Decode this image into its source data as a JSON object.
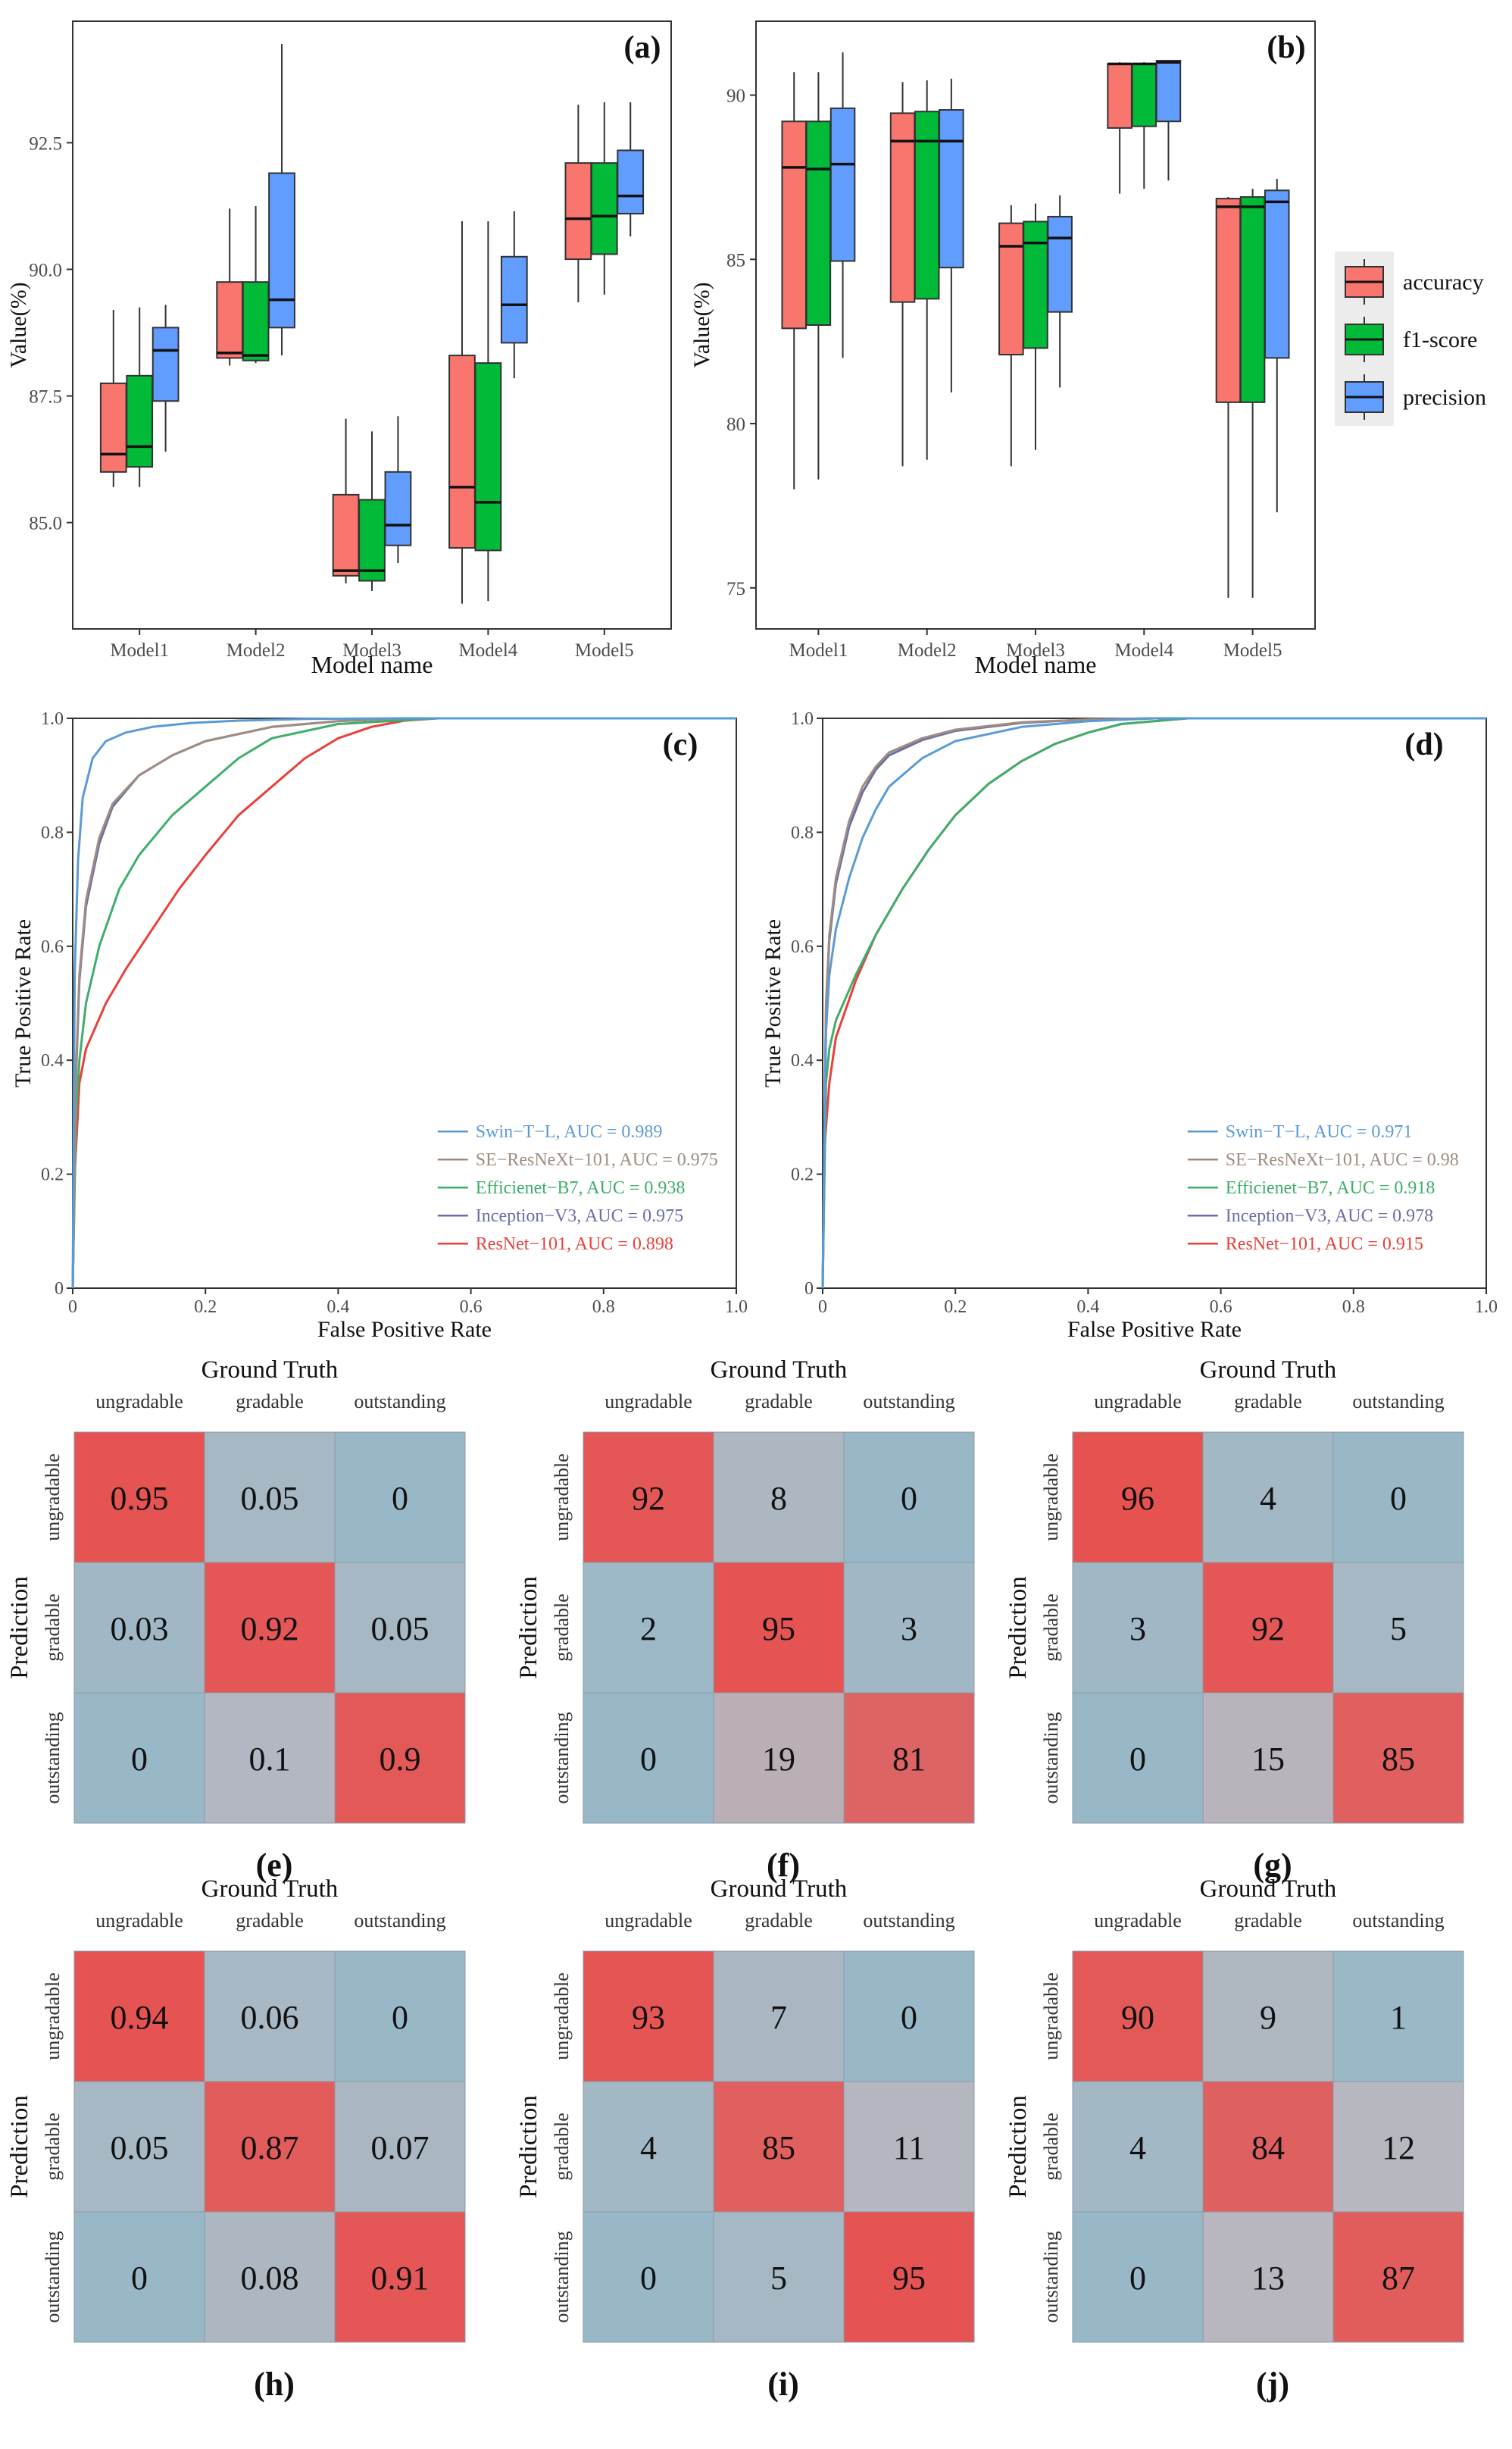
{
  "chart_data": [
    {
      "id": "a",
      "panel_label": "(a)",
      "type": "box",
      "xlabel": "Model name",
      "ylabel": "Value(%)",
      "categories": [
        "Model1",
        "Model2",
        "Model3",
        "Model4",
        "Model5"
      ],
      "ylim": [
        82.9,
        94.9
      ],
      "yticks": [
        85.0,
        87.5,
        90.0,
        92.5
      ],
      "ytick_labels": [
        "85.0",
        "87.5",
        "90.0",
        "92.5"
      ],
      "series": [
        {
          "name": "accuracy",
          "color": "#F8766D",
          "boxes": [
            {
              "min": 85.7,
              "q1": 86.0,
              "median": 86.35,
              "q3": 87.75,
              "max": 89.2
            },
            {
              "min": 88.1,
              "q1": 88.25,
              "median": 88.35,
              "q3": 89.75,
              "max": 91.2
            },
            {
              "min": 83.8,
              "q1": 83.95,
              "median": 84.05,
              "q3": 85.55,
              "max": 87.05
            },
            {
              "min": 83.4,
              "q1": 84.5,
              "median": 85.7,
              "q3": 88.3,
              "max": 90.95
            },
            {
              "min": 89.35,
              "q1": 90.2,
              "median": 91.0,
              "q3": 92.1,
              "max": 93.25
            }
          ]
        },
        {
          "name": "f1-score",
          "color": "#00BA38",
          "boxes": [
            {
              "min": 85.7,
              "q1": 86.1,
              "median": 86.5,
              "q3": 87.9,
              "max": 89.25
            },
            {
              "min": 88.15,
              "q1": 88.2,
              "median": 88.3,
              "q3": 89.75,
              "max": 91.25
            },
            {
              "min": 83.65,
              "q1": 83.85,
              "median": 84.05,
              "q3": 85.45,
              "max": 86.8
            },
            {
              "min": 83.45,
              "q1": 84.45,
              "median": 85.4,
              "q3": 88.15,
              "max": 90.95
            },
            {
              "min": 89.5,
              "q1": 90.3,
              "median": 91.05,
              "q3": 92.1,
              "max": 93.3
            }
          ]
        },
        {
          "name": "precision",
          "color": "#619CFF",
          "boxes": [
            {
              "min": 86.4,
              "q1": 87.4,
              "median": 88.4,
              "q3": 88.85,
              "max": 89.3
            },
            {
              "min": 88.3,
              "q1": 88.85,
              "median": 89.4,
              "q3": 91.9,
              "max": 94.45
            },
            {
              "min": 84.2,
              "q1": 84.55,
              "median": 84.95,
              "q3": 86.0,
              "max": 87.1
            },
            {
              "min": 87.85,
              "q1": 88.55,
              "median": 89.3,
              "q3": 90.25,
              "max": 91.15
            },
            {
              "min": 90.65,
              "q1": 91.1,
              "median": 91.45,
              "q3": 92.35,
              "max": 93.3
            }
          ]
        }
      ]
    },
    {
      "id": "b",
      "panel_label": "(b)",
      "type": "box",
      "xlabel": "Model name",
      "ylabel": "Value(%)",
      "categories": [
        "Model1",
        "Model2",
        "Model3",
        "Model4",
        "Model5"
      ],
      "ylim": [
        73.75,
        92.25
      ],
      "yticks": [
        75,
        80,
        85,
        90
      ],
      "ytick_labels": [
        "75",
        "80",
        "85",
        "90"
      ],
      "legend": {
        "position": "right",
        "entries": [
          "accuracy",
          "f1-score",
          "precision"
        ]
      },
      "series": [
        {
          "name": "accuracy",
          "color": "#F8766D",
          "boxes": [
            {
              "min": 78.0,
              "q1": 82.9,
              "median": 87.8,
              "q3": 89.2,
              "max": 90.7
            },
            {
              "min": 78.7,
              "q1": 83.7,
              "median": 88.6,
              "q3": 89.45,
              "max": 90.4
            },
            {
              "min": 78.7,
              "q1": 82.1,
              "median": 85.4,
              "q3": 86.1,
              "max": 86.65
            },
            {
              "min": 87.0,
              "q1": 89.0,
              "median": 90.95,
              "q3": 90.95,
              "max": 91.0
            },
            {
              "min": 74.7,
              "q1": 80.65,
              "median": 86.6,
              "q3": 86.85,
              "max": 86.9
            }
          ]
        },
        {
          "name": "f1-score",
          "color": "#00BA38",
          "boxes": [
            {
              "min": 78.3,
              "q1": 83.0,
              "median": 87.75,
              "q3": 89.2,
              "max": 90.7
            },
            {
              "min": 78.9,
              "q1": 83.8,
              "median": 88.6,
              "q3": 89.5,
              "max": 90.45
            },
            {
              "min": 79.2,
              "q1": 82.3,
              "median": 85.5,
              "q3": 86.15,
              "max": 86.7
            },
            {
              "min": 87.15,
              "q1": 89.05,
              "median": 90.95,
              "q3": 90.95,
              "max": 91.0
            },
            {
              "min": 74.7,
              "q1": 80.65,
              "median": 86.6,
              "q3": 86.9,
              "max": 87.15
            }
          ]
        },
        {
          "name": "precision",
          "color": "#619CFF",
          "boxes": [
            {
              "min": 82.0,
              "q1": 84.95,
              "median": 87.9,
              "q3": 89.6,
              "max": 91.3
            },
            {
              "min": 80.95,
              "q1": 84.75,
              "median": 88.6,
              "q3": 89.55,
              "max": 90.5
            },
            {
              "min": 81.1,
              "q1": 83.4,
              "median": 85.65,
              "q3": 86.3,
              "max": 86.95
            },
            {
              "min": 87.4,
              "q1": 89.2,
              "median": 91.0,
              "q3": 91.05,
              "max": 91.05
            },
            {
              "min": 77.3,
              "q1": 82.0,
              "median": 86.75,
              "q3": 87.1,
              "max": 87.45
            }
          ]
        }
      ]
    },
    {
      "id": "c",
      "panel_label": "(c)",
      "type": "line",
      "xlabel": "False Positive Rate",
      "ylabel": "True Positive Rate",
      "xlim": [
        0,
        1
      ],
      "ylim": [
        0,
        1
      ],
      "ticks": [
        "0",
        "0.2",
        "0.4",
        "0.6",
        "0.8",
        "1.0"
      ],
      "legend_position": "bottom-right",
      "series": [
        {
          "name": "Swin−T−L",
          "label": "Swin−T−L, AUC = 0.989",
          "auc": 0.989,
          "color": "#5B9BD5",
          "x": [
            0,
            0.003,
            0.008,
            0.015,
            0.03,
            0.05,
            0.08,
            0.12,
            0.18,
            0.25,
            0.35,
            0.5,
            1.0
          ],
          "y": [
            0,
            0.55,
            0.75,
            0.86,
            0.93,
            0.96,
            0.975,
            0.985,
            0.992,
            0.996,
            0.999,
            1.0,
            1.0
          ]
        },
        {
          "name": "SE−ResNeXt−101",
          "label": "SE−ResNeXt−101, AUC = 0.975",
          "auc": 0.975,
          "color": "#A08C80",
          "x": [
            0,
            0.005,
            0.01,
            0.02,
            0.04,
            0.06,
            0.1,
            0.15,
            0.2,
            0.3,
            0.4,
            0.5,
            1.0
          ],
          "y": [
            0,
            0.38,
            0.55,
            0.68,
            0.79,
            0.85,
            0.9,
            0.935,
            0.96,
            0.985,
            0.995,
            1.0,
            1.0
          ]
        },
        {
          "name": "Efficienet−B7",
          "label": "Efficienet−B7, AUC = 0.938",
          "auc": 0.938,
          "color": "#3FAE6C",
          "x": [
            0,
            0.005,
            0.01,
            0.02,
            0.04,
            0.07,
            0.1,
            0.15,
            0.2,
            0.25,
            0.3,
            0.4,
            0.55,
            1.0
          ],
          "y": [
            0,
            0.3,
            0.4,
            0.5,
            0.6,
            0.7,
            0.76,
            0.83,
            0.88,
            0.93,
            0.965,
            0.99,
            1.0,
            1.0
          ]
        },
        {
          "name": "Inception−V3",
          "label": "Inception−V3, AUC = 0.975",
          "auc": 0.975,
          "color": "#6A6DA8",
          "x": [
            0,
            0.005,
            0.01,
            0.02,
            0.04,
            0.06,
            0.1,
            0.15,
            0.2,
            0.3,
            0.4,
            0.5,
            1.0
          ],
          "y": [
            0,
            0.37,
            0.54,
            0.67,
            0.78,
            0.845,
            0.9,
            0.935,
            0.96,
            0.985,
            0.995,
            1.0,
            1.0
          ]
        },
        {
          "name": "ResNet−101",
          "label": "ResNet−101, AUC = 0.898",
          "auc": 0.898,
          "color": "#E8403A",
          "x": [
            0,
            0.003,
            0.01,
            0.02,
            0.05,
            0.08,
            0.12,
            0.16,
            0.2,
            0.25,
            0.3,
            0.35,
            0.4,
            0.45,
            0.5,
            0.55,
            1.0
          ],
          "y": [
            0,
            0.2,
            0.36,
            0.42,
            0.5,
            0.56,
            0.63,
            0.7,
            0.76,
            0.83,
            0.88,
            0.93,
            0.965,
            0.985,
            0.996,
            1.0,
            1.0
          ]
        }
      ]
    },
    {
      "id": "d",
      "panel_label": "(d)",
      "type": "line",
      "xlabel": "False Positive Rate",
      "ylabel": "True Positive Rate",
      "xlim": [
        0,
        1
      ],
      "ylim": [
        0,
        1
      ],
      "ticks": [
        "0",
        "0.2",
        "0.4",
        "0.6",
        "0.8",
        "1.0"
      ],
      "legend_position": "bottom-right",
      "series": [
        {
          "name": "Swin−T−L",
          "label": "Swin−T−L, AUC = 0.971",
          "auc": 0.971,
          "color": "#5B9BD5",
          "x": [
            0,
            0.005,
            0.01,
            0.02,
            0.04,
            0.06,
            0.08,
            0.1,
            0.15,
            0.2,
            0.3,
            0.4,
            0.5,
            1.0
          ],
          "y": [
            0,
            0.45,
            0.55,
            0.63,
            0.72,
            0.79,
            0.84,
            0.88,
            0.93,
            0.96,
            0.985,
            0.995,
            1.0,
            1.0
          ]
        },
        {
          "name": "SE−ResNeXt−101",
          "label": "SE−ResNeXt−101, AUC = 0.98",
          "auc": 0.98,
          "color": "#A08C80",
          "x": [
            0,
            0.005,
            0.01,
            0.02,
            0.04,
            0.06,
            0.08,
            0.1,
            0.15,
            0.2,
            0.3,
            0.4,
            0.5,
            1.0
          ],
          "y": [
            0,
            0.5,
            0.62,
            0.72,
            0.82,
            0.88,
            0.915,
            0.94,
            0.965,
            0.98,
            0.993,
            0.998,
            1.0,
            1.0
          ]
        },
        {
          "name": "Efficienet−B7",
          "label": "Efficienet−B7, AUC = 0.918",
          "auc": 0.918,
          "color": "#3FAE6C",
          "x": [
            0,
            0.005,
            0.01,
            0.02,
            0.05,
            0.08,
            0.12,
            0.16,
            0.2,
            0.25,
            0.3,
            0.35,
            0.4,
            0.45,
            0.55,
            1.0
          ],
          "y": [
            0,
            0.36,
            0.42,
            0.47,
            0.55,
            0.62,
            0.7,
            0.77,
            0.83,
            0.885,
            0.925,
            0.955,
            0.975,
            0.99,
            1.0,
            1.0
          ]
        },
        {
          "name": "Inception−V3",
          "label": "Inception−V3, AUC = 0.978",
          "auc": 0.978,
          "color": "#6A6DA8",
          "x": [
            0,
            0.005,
            0.01,
            0.02,
            0.04,
            0.06,
            0.08,
            0.1,
            0.15,
            0.2,
            0.3,
            0.4,
            0.5,
            1.0
          ],
          "y": [
            0,
            0.49,
            0.61,
            0.71,
            0.81,
            0.87,
            0.91,
            0.935,
            0.962,
            0.978,
            0.992,
            0.998,
            1.0,
            1.0
          ]
        },
        {
          "name": "ResNet−101",
          "label": "ResNet−101, AUC = 0.915",
          "auc": 0.915,
          "color": "#E8403A",
          "x": [
            0,
            0.003,
            0.01,
            0.02,
            0.05,
            0.08,
            0.12,
            0.16,
            0.2,
            0.25,
            0.3,
            0.35,
            0.4,
            0.45,
            0.55,
            1.0
          ],
          "y": [
            0,
            0.25,
            0.36,
            0.44,
            0.54,
            0.62,
            0.7,
            0.77,
            0.83,
            0.885,
            0.925,
            0.955,
            0.975,
            0.99,
            1.0,
            1.0
          ]
        }
      ]
    },
    {
      "id": "e",
      "panel_label": "(e)",
      "type": "heatmap",
      "title": "Ground Truth",
      "ylabel": "Prediction",
      "columns": [
        "ungradable",
        "gradable",
        "outstanding"
      ],
      "rows": [
        "ungradable",
        "gradable",
        "outstanding"
      ],
      "values": [
        [
          "0.95",
          "0.05",
          "0"
        ],
        [
          "0.03",
          "0.92",
          "0.05"
        ],
        [
          "0",
          "0.1",
          "0.9"
        ]
      ]
    },
    {
      "id": "f",
      "panel_label": "(f)",
      "type": "heatmap",
      "title": "Ground Truth",
      "ylabel": "Prediction",
      "columns": [
        "ungradable",
        "gradable",
        "outstanding"
      ],
      "rows": [
        "ungradable",
        "gradable",
        "outstanding"
      ],
      "values": [
        [
          "92",
          "8",
          "0"
        ],
        [
          "2",
          "95",
          "3"
        ],
        [
          "0",
          "19",
          "81"
        ]
      ]
    },
    {
      "id": "g",
      "panel_label": "(g)",
      "type": "heatmap",
      "title": "Ground Truth",
      "ylabel": "Prediction",
      "columns": [
        "ungradable",
        "gradable",
        "outstanding"
      ],
      "rows": [
        "ungradable",
        "gradable",
        "outstanding"
      ],
      "values": [
        [
          "96",
          "4",
          "0"
        ],
        [
          "3",
          "92",
          "5"
        ],
        [
          "0",
          "15",
          "85"
        ]
      ]
    },
    {
      "id": "h",
      "panel_label": "(h)",
      "type": "heatmap",
      "title": "Ground Truth",
      "ylabel": "Prediction",
      "columns": [
        "ungradable",
        "gradable",
        "outstanding"
      ],
      "rows": [
        "ungradable",
        "gradable",
        "outstanding"
      ],
      "values": [
        [
          "0.94",
          "0.06",
          "0"
        ],
        [
          "0.05",
          "0.87",
          "0.07"
        ],
        [
          "0",
          "0.08",
          "0.91"
        ]
      ]
    },
    {
      "id": "i",
      "panel_label": "(i)",
      "type": "heatmap",
      "title": "Ground Truth",
      "ylabel": "Prediction",
      "columns": [
        "ungradable",
        "gradable",
        "outstanding"
      ],
      "rows": [
        "ungradable",
        "gradable",
        "outstanding"
      ],
      "values": [
        [
          "93",
          "7",
          "0"
        ],
        [
          "4",
          "85",
          "11"
        ],
        [
          "0",
          "5",
          "95"
        ]
      ]
    },
    {
      "id": "j",
      "panel_label": "(j)",
      "type": "heatmap",
      "title": "Ground Truth",
      "ylabel": "Prediction",
      "columns": [
        "ungradable",
        "gradable",
        "outstanding"
      ],
      "rows": [
        "ungradable",
        "gradable",
        "outstanding"
      ],
      "values": [
        [
          "90",
          "9",
          "1"
        ],
        [
          "4",
          "84",
          "12"
        ],
        [
          "0",
          "13",
          "87"
        ]
      ]
    }
  ],
  "colors": {
    "heatmap_low": "#98B8C8",
    "heatmap_mid": "#B7B7BF",
    "heatmap_high": "#E84D4B",
    "axis": "#222222",
    "tick_text": "#4D4D4D"
  }
}
